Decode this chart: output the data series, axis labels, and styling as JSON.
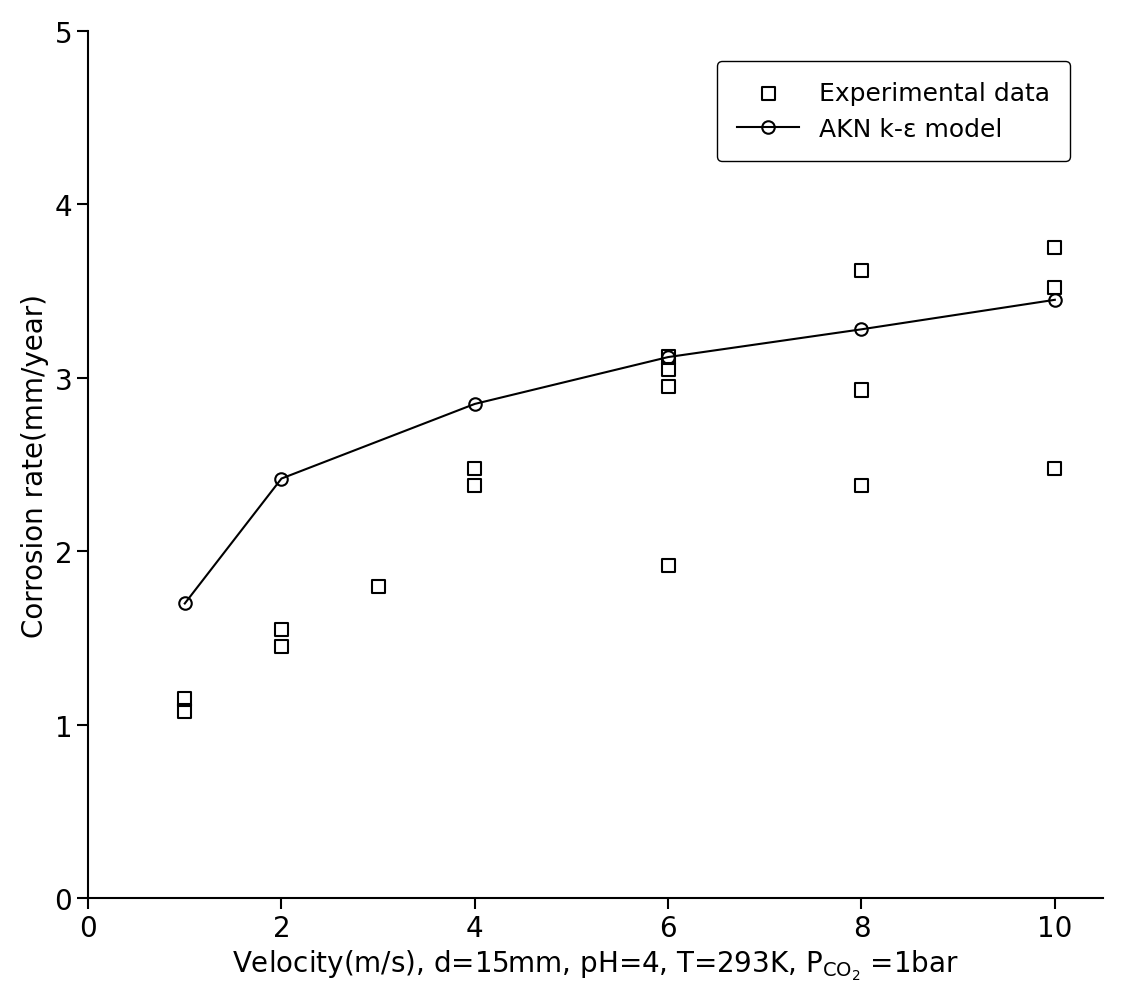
{
  "model_x": [
    1,
    2,
    4,
    6,
    8,
    10
  ],
  "model_y": [
    1.7,
    2.42,
    2.85,
    3.12,
    3.28,
    3.45
  ],
  "exp_x": [
    1,
    1,
    2,
    2,
    3,
    4,
    4,
    6,
    6,
    6,
    6,
    8,
    8,
    8,
    10,
    10,
    10
  ],
  "exp_y": [
    1.15,
    1.08,
    1.55,
    1.45,
    1.8,
    2.48,
    2.38,
    3.12,
    3.05,
    2.95,
    1.92,
    3.62,
    2.93,
    2.38,
    3.75,
    3.52,
    2.48
  ],
  "ylabel": "Corrosion rate(mm/year)",
  "xlim": [
    0,
    10.5
  ],
  "ylim": [
    0,
    5
  ],
  "xticks": [
    0,
    2,
    4,
    6,
    8,
    10
  ],
  "yticks": [
    0,
    1,
    2,
    3,
    4,
    5
  ],
  "legend_exp": "Experimental data",
  "legend_model": "AKN k-ε model",
  "line_color": "#000000",
  "marker_color": "#000000",
  "background_color": "#ffffff",
  "label_fontsize": 20,
  "tick_fontsize": 20,
  "legend_fontsize": 18
}
